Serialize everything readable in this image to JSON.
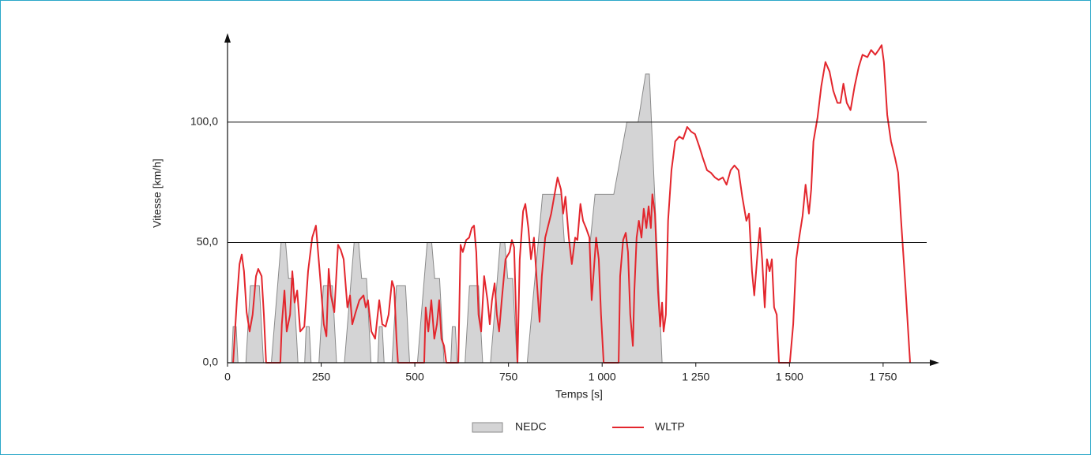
{
  "chart_data": {
    "type": "line",
    "xlabel": "Temps [s]",
    "ylabel": "Vitesse [km/h]",
    "xlim": [
      0,
      1900
    ],
    "ylim": [
      0,
      137
    ],
    "xticks": [
      0,
      250,
      500,
      750,
      {
        "value": 1000,
        "label": "1 000"
      },
      {
        "value": 1250,
        "label": "1 250"
      },
      {
        "value": 1500,
        "label": "1 500"
      },
      {
        "value": 1750,
        "label": "1 750"
      }
    ],
    "yticks": [
      {
        "value": 0,
        "label": "0,0"
      },
      {
        "value": 50,
        "label": "50,0"
      },
      {
        "value": 100,
        "label": "100,0"
      }
    ],
    "grid": true,
    "series": [
      {
        "name": "NEDC",
        "color": "#d4d4d5",
        "fill": true,
        "x": [
          0,
          11,
          15,
          23,
          28,
          49,
          61,
          85,
          96,
          117,
          143,
          155,
          163,
          176,
          188,
          195,
          206,
          210,
          218,
          223,
          244,
          256,
          280,
          291,
          312,
          338,
          350,
          358,
          371,
          383,
          390,
          401,
          405,
          413,
          418,
          439,
          451,
          475,
          486,
          507,
          533,
          545,
          553,
          566,
          578,
          585,
          596,
          600,
          608,
          613,
          634,
          646,
          670,
          681,
          702,
          728,
          740,
          748,
          761,
          773,
          780,
          800,
          841,
          891,
          899,
          968,
          981,
          1031,
          1066,
          1096,
          1116,
          1126,
          1160,
          1180
        ],
        "values": [
          0,
          0,
          15,
          15,
          0,
          0,
          32,
          32,
          0,
          0,
          50,
          50,
          35,
          35,
          0,
          0,
          0,
          15,
          15,
          0,
          0,
          32,
          32,
          0,
          0,
          50,
          50,
          35,
          35,
          0,
          0,
          0,
          15,
          15,
          0,
          0,
          32,
          32,
          0,
          0,
          50,
          50,
          35,
          35,
          0,
          0,
          0,
          15,
          15,
          0,
          0,
          32,
          32,
          0,
          0,
          50,
          50,
          35,
          35,
          0,
          0,
          0,
          70,
          70,
          50,
          50,
          70,
          70,
          100,
          100,
          120,
          120,
          0,
          0
        ]
      },
      {
        "name": "WLTP",
        "color": "#e3262d",
        "fill": false,
        "x": [
          15,
          25,
          32,
          38,
          44,
          51,
          59,
          67,
          76,
          82,
          91,
          97,
          103,
          141,
          145,
          152,
          158,
          167,
          173,
          179,
          186,
          194,
          205,
          215,
          226,
          236,
          247,
          257,
          264,
          270,
          276,
          285,
          295,
          302,
          310,
          320,
          327,
          333,
          342,
          352,
          363,
          369,
          375,
          384,
          394,
          405,
          413,
          422,
          430,
          439,
          445,
          451,
          455,
          525,
          529,
          536,
          544,
          552,
          559,
          565,
          571,
          578,
          584,
          616,
          622,
          628,
          637,
          645,
          652,
          658,
          664,
          670,
          677,
          685,
          694,
          700,
          706,
          713,
          719,
          725,
          732,
          742,
          753,
          759,
          765,
          774,
          780,
          789,
          795,
          803,
          810,
          818,
          826,
          833,
          839,
          848,
          856,
          864,
          873,
          881,
          890,
          896,
          902,
          911,
          919,
          928,
          934,
          942,
          949,
          957,
          966,
          972,
          978,
          984,
          991,
          997,
          1004,
          1044,
          1048,
          1056,
          1063,
          1069,
          1075,
          1082,
          1086,
          1092,
          1098,
          1105,
          1111,
          1118,
          1124,
          1130,
          1134,
          1141,
          1149,
          1155,
          1160,
          1164,
          1170,
          1176,
          1185,
          1195,
          1206,
          1216,
          1227,
          1238,
          1248,
          1259,
          1269,
          1280,
          1290,
          1301,
          1311,
          1322,
          1332,
          1343,
          1353,
          1364,
          1374,
          1385,
          1392,
          1400,
          1406,
          1415,
          1421,
          1427,
          1434,
          1440,
          1447,
          1453,
          1459,
          1466,
          1472,
          1501,
          1510,
          1518,
          1526,
          1535,
          1543,
          1552,
          1558,
          1564,
          1575,
          1585,
          1596,
          1607,
          1617,
          1628,
          1636,
          1644,
          1653,
          1663,
          1674,
          1685,
          1695,
          1708,
          1718,
          1729,
          1738,
          1746,
          1752,
          1761,
          1771,
          1782,
          1790,
          1798,
          1809,
          1822
        ],
        "values": [
          0,
          26,
          41,
          45,
          38,
          21,
          13,
          20,
          36,
          39,
          36,
          20,
          0,
          0,
          16,
          30,
          13,
          20,
          38,
          25,
          30,
          13,
          15,
          38,
          52,
          57,
          36,
          16,
          11,
          39,
          28,
          21,
          49,
          47,
          43,
          23,
          28,
          16,
          21,
          26,
          28,
          23,
          26,
          13,
          10,
          26,
          16,
          15,
          20,
          34,
          31,
          10,
          0,
          0,
          23,
          13,
          26,
          10,
          16,
          26,
          10,
          7,
          0,
          0,
          49,
          46,
          51,
          52,
          56,
          57,
          46,
          20,
          13,
          36,
          26,
          16,
          26,
          33,
          20,
          13,
          26,
          43,
          46,
          51,
          48,
          0,
          43,
          63,
          66,
          56,
          43,
          52,
          33,
          17,
          36,
          52,
          57,
          62,
          70,
          77,
          72,
          62,
          69,
          52,
          41,
          52,
          51,
          66,
          59,
          56,
          52,
          26,
          39,
          52,
          43,
          20,
          0,
          0,
          36,
          51,
          54,
          46,
          20,
          7,
          30,
          52,
          59,
          52,
          64,
          56,
          65,
          56,
          70,
          62,
          30,
          15,
          25,
          13,
          20,
          59,
          80,
          92,
          94,
          93,
          98,
          96,
          95,
          90,
          85,
          80,
          79,
          77,
          76,
          77,
          74,
          80,
          82,
          80,
          69,
          59,
          62,
          38,
          28,
          46,
          56,
          43,
          23,
          43,
          38,
          43,
          23,
          20,
          0,
          0,
          16,
          43,
          52,
          61,
          74,
          62,
          72,
          92,
          102,
          115,
          125,
          121,
          113,
          108,
          108,
          116,
          108,
          105,
          115,
          123,
          128,
          127,
          130,
          128,
          130,
          132,
          125,
          103,
          92,
          85,
          79,
          59,
          33,
          0
        ]
      }
    ]
  }
}
